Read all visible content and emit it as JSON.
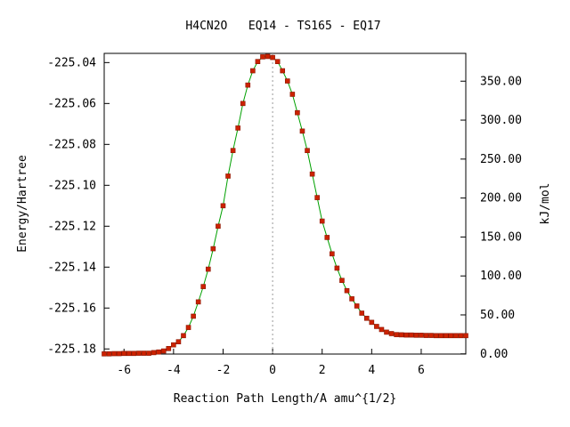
{
  "chart_data": {
    "type": "scatter",
    "title": "H4CN2O   EQ14 - TS165 - EQ17",
    "xlabel": "Reaction Path Length/A amu^{1/2}",
    "ylabel": "Energy/Hartree",
    "y2label": "kJ/mol",
    "xlim": [
      -6.8,
      7.8
    ],
    "ylim": [
      -225.1825,
      -225.0355
    ],
    "x_ticks": [
      "-6",
      "-4",
      "-2",
      "0",
      "2",
      "4",
      "6"
    ],
    "y_ticks": [
      "-225.18",
      "-225.16",
      "-225.14",
      "-225.12",
      "-225.10",
      "-225.08",
      "-225.06",
      "-225.04"
    ],
    "y2_ticks": [
      "0.00",
      "50.00",
      "100.00",
      "150.00",
      "200.00",
      "250.00",
      "300.00",
      "350.00"
    ],
    "reference_line_x": 0,
    "colors": {
      "line": "#00a000",
      "point": "#cc2200",
      "point_edge": "#8a1500",
      "reference_line": "#999999"
    },
    "series": [
      {
        "x": [
          -6.8,
          -6.6,
          -6.4,
          -6.2,
          -6.0,
          -5.8,
          -5.6,
          -5.4,
          -5.2,
          -5.0,
          -4.8,
          -4.6,
          -4.4,
          -4.2,
          -4.0,
          -3.8,
          -3.6,
          -3.4,
          -3.2,
          -3.0,
          -2.8,
          -2.6,
          -2.4,
          -2.2,
          -2.0,
          -1.8,
          -1.6,
          -1.4,
          -1.2,
          -1.0,
          -0.8,
          -0.6,
          -0.4,
          -0.2,
          0.0,
          0.2,
          0.4,
          0.6,
          0.8,
          1.0,
          1.2,
          1.4,
          1.6,
          1.8,
          2.0,
          2.2,
          2.4,
          2.6,
          2.8,
          3.0,
          3.2,
          3.4,
          3.6,
          3.8,
          4.0,
          4.2,
          4.4,
          4.6,
          4.8,
          5.0,
          5.2,
          5.4,
          5.6,
          5.8,
          6.0,
          6.2,
          6.4,
          6.6,
          6.8,
          7.0,
          7.2,
          7.4,
          7.6,
          7.8
        ],
        "y": [
          -225.1824,
          -225.1824,
          -225.1823,
          -225.1823,
          -225.1822,
          -225.1822,
          -225.1822,
          -225.1821,
          -225.1821,
          -225.1821,
          -225.1818,
          -225.1815,
          -225.181,
          -225.1798,
          -225.178,
          -225.1765,
          -225.1735,
          -225.1695,
          -225.164,
          -225.157,
          -225.1495,
          -225.141,
          -225.131,
          -225.12,
          -225.11,
          -225.0955,
          -225.083,
          -225.072,
          -225.06,
          -225.051,
          -225.044,
          -225.0395,
          -225.0372,
          -225.037,
          -225.0375,
          -225.0395,
          -225.044,
          -225.049,
          -225.0555,
          -225.0645,
          -225.0735,
          -225.083,
          -225.0945,
          -225.106,
          -225.1175,
          -225.1255,
          -225.1335,
          -225.1405,
          -225.1465,
          -225.1515,
          -225.1555,
          -225.159,
          -225.1625,
          -225.165,
          -225.167,
          -225.169,
          -225.1705,
          -225.1718,
          -225.1725,
          -225.173,
          -225.1731,
          -225.1732,
          -225.1732,
          -225.1733,
          -225.1733,
          -225.1734,
          -225.1734,
          -225.1735,
          -225.1735,
          -225.1735,
          -225.1735,
          -225.1735,
          -225.1735,
          -225.1735
        ]
      }
    ]
  }
}
